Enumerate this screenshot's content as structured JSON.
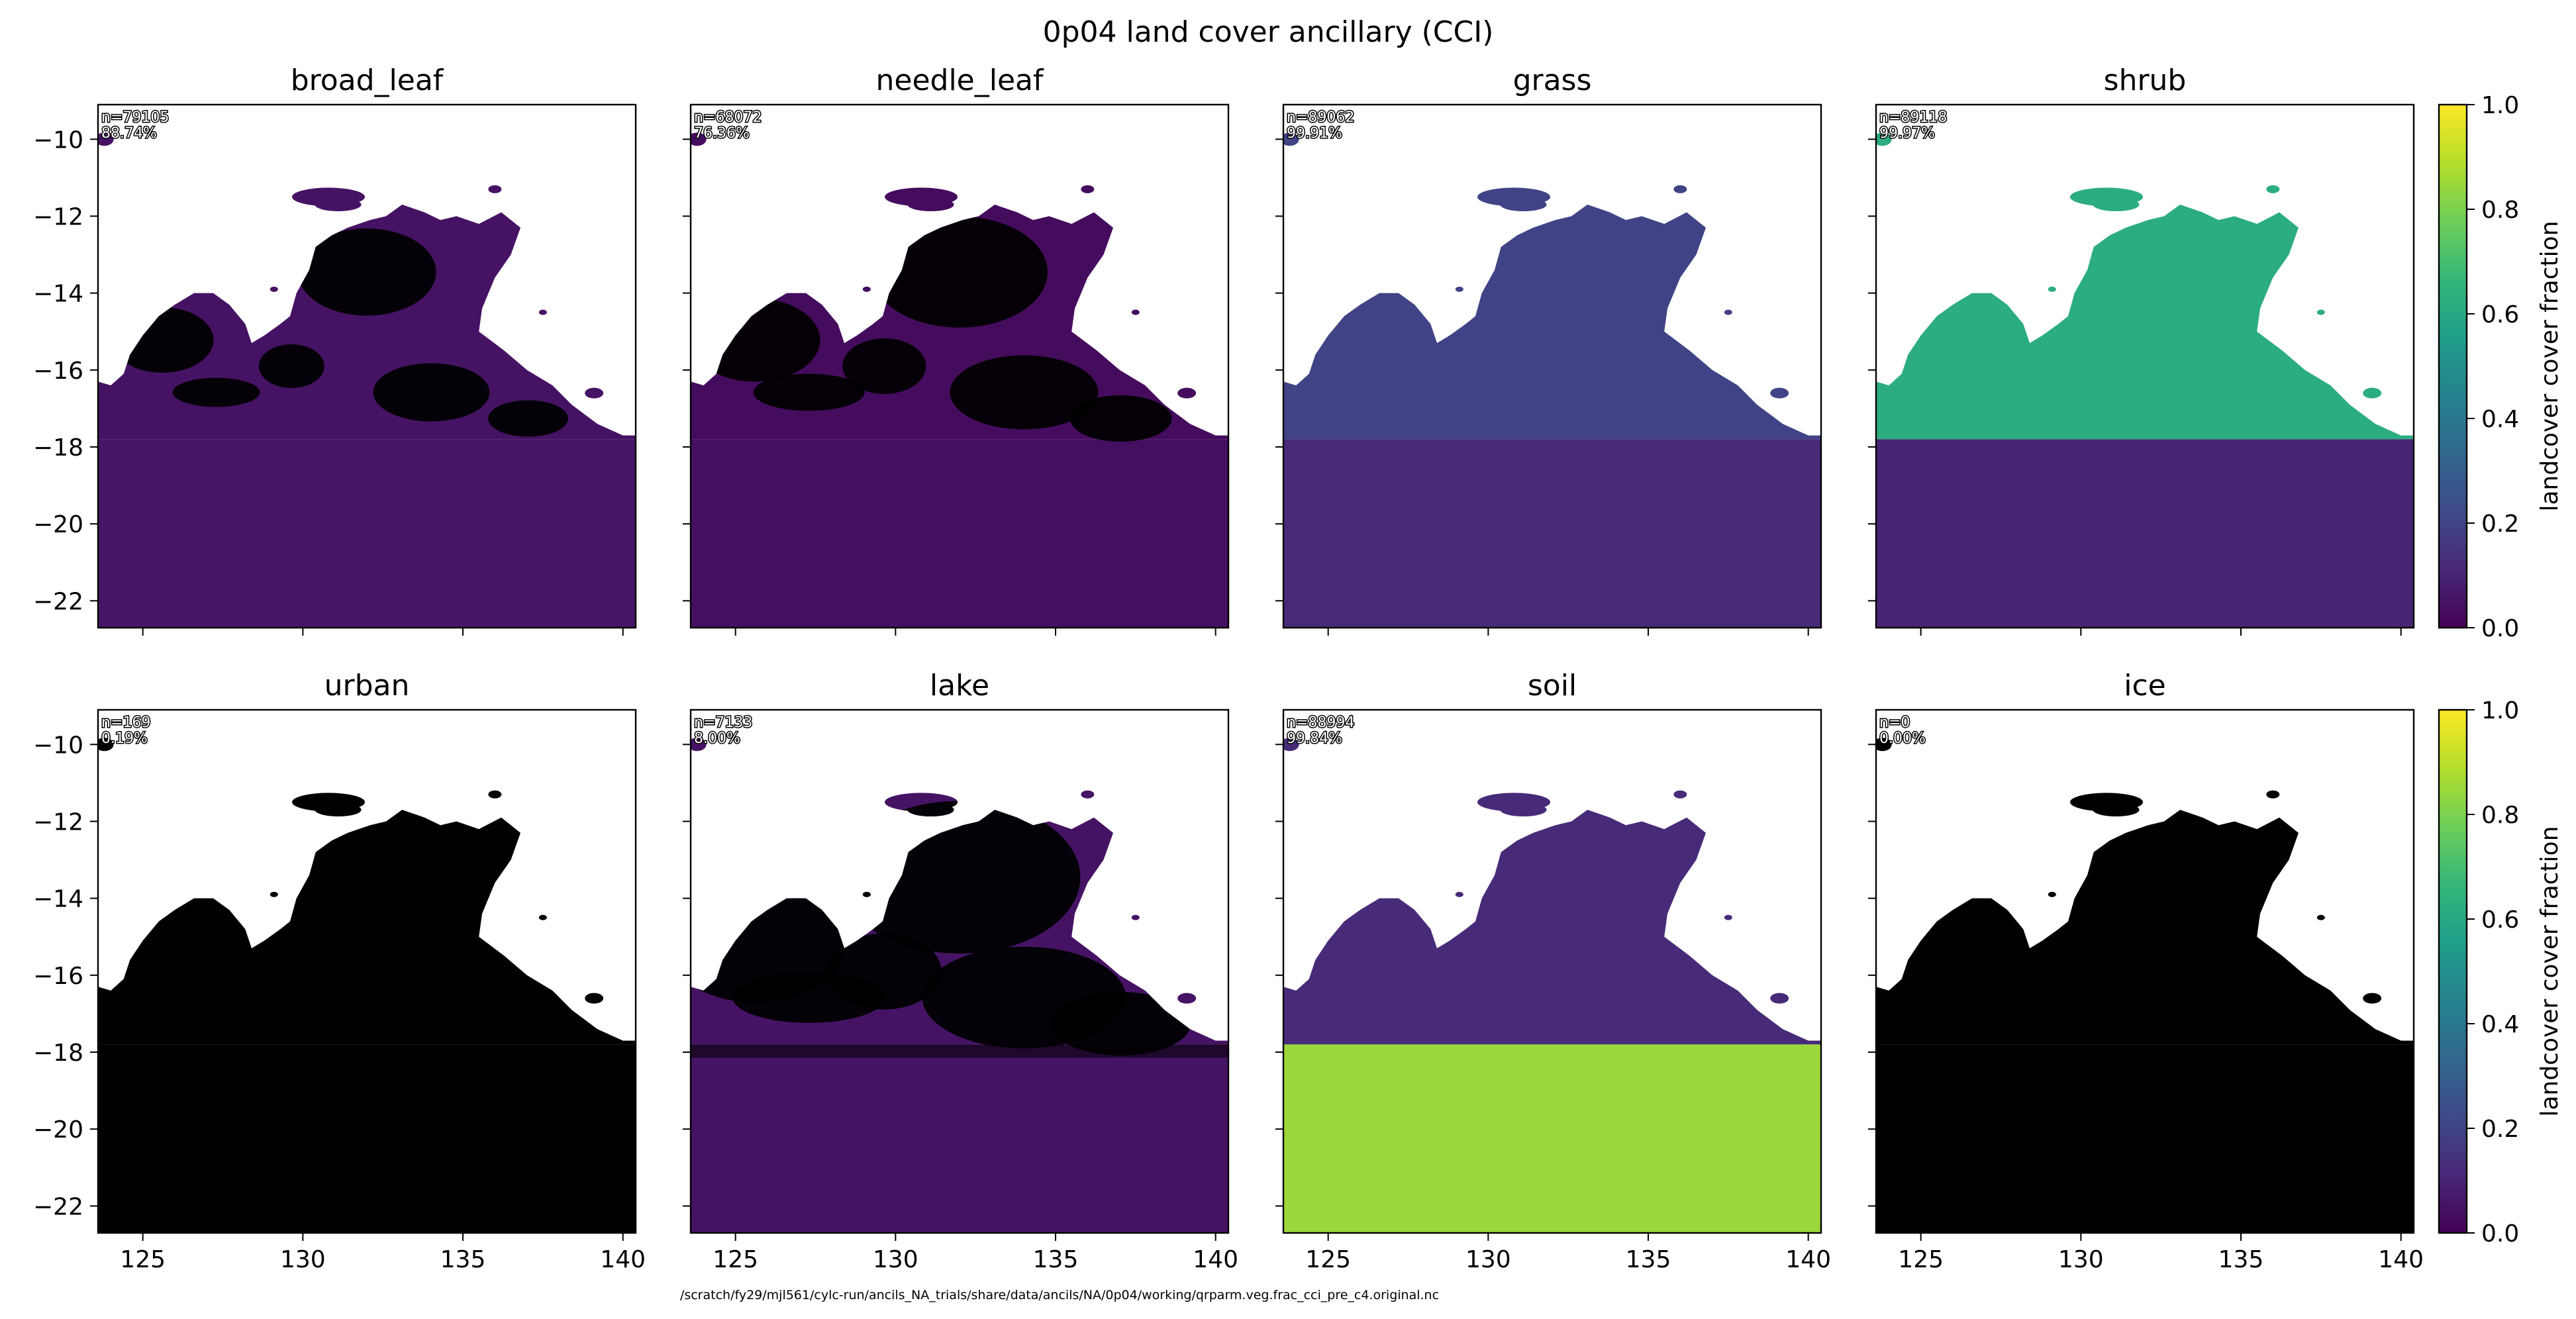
{
  "figure": {
    "title": "0p04 land cover ancillary (CCI)",
    "footer": "/scratch/fy29/mjl561/cylc-run/ancils_NA_trials/share/data/ancils/NA/0p04/working/qrparm.veg.frac_cci_pre_c4.original.nc"
  },
  "colors": {
    "viridis": [
      "#440154",
      "#482878",
      "#3e4a89",
      "#31688e",
      "#26828e",
      "#1f9e89",
      "#35b779",
      "#6ece58",
      "#b5de2b",
      "#fde725"
    ],
    "nodata": "#000000",
    "ocean": "#ffffff"
  },
  "chart_data": {
    "type": "heatmap",
    "layout": "2x4 panel grid",
    "x_axis": {
      "range": [
        123.6,
        140.4
      ],
      "ticks": [
        125,
        130,
        135,
        140
      ],
      "tick_labels": [
        "125",
        "130",
        "135",
        "140"
      ]
    },
    "y_axis": {
      "range": [
        -22.7,
        -9.1
      ],
      "ticks": [
        -10,
        -12,
        -14,
        -16,
        -18,
        -20,
        -22
      ],
      "tick_labels": [
        "−10",
        "−12",
        "−14",
        "−16",
        "−18",
        "−20",
        "−22"
      ]
    },
    "colorbar": {
      "label": "landcover cover fraction",
      "range": [
        0.0,
        1.0
      ],
      "ticks": [
        0.0,
        0.2,
        0.4,
        0.6,
        0.8,
        1.0
      ],
      "tick_labels": [
        "0.0",
        "0.2",
        "0.4",
        "0.6",
        "0.8",
        "1.0"
      ],
      "colormap": "viridis"
    },
    "panels": [
      {
        "name": "broad_leaf",
        "count": "n=79105",
        "percent": "88.74%",
        "north_fraction": 0.05,
        "south_fraction": 0.06,
        "nodata_north": 0.55,
        "nodata_south": 0.0
      },
      {
        "name": "needle_leaf",
        "count": "n=68072",
        "percent": "76.36%",
        "north_fraction": 0.03,
        "south_fraction": 0.04,
        "nodata_north": 0.7,
        "nodata_south": 0.05
      },
      {
        "name": "grass",
        "count": "n=89062",
        "percent": "99.91%",
        "north_fraction": 0.2,
        "south_fraction": 0.12,
        "nodata_north": 0.0,
        "nodata_south": 0.0
      },
      {
        "name": "shrub",
        "count": "n=89118",
        "percent": "99.97%",
        "north_fraction": 0.62,
        "south_fraction": 0.1,
        "nodata_north": 0.0,
        "nodata_south": 0.0
      },
      {
        "name": "urban",
        "count": "n=169",
        "percent": "0.19%",
        "north_fraction": 0.0,
        "south_fraction": 0.0,
        "nodata_north": 1.0,
        "nodata_south": 1.0
      },
      {
        "name": "lake",
        "count": "n=7133",
        "percent": "8.00%",
        "north_fraction": 0.05,
        "south_fraction": 0.05,
        "nodata_north": 0.96,
        "nodata_south": 0.95
      },
      {
        "name": "soil",
        "count": "n=88994",
        "percent": "99.84%",
        "north_fraction": 0.12,
        "south_fraction": 0.85,
        "nodata_north": 0.0,
        "nodata_south": 0.0
      },
      {
        "name": "ice",
        "count": "n=0",
        "percent": "0.00%",
        "north_fraction": 0.0,
        "south_fraction": 0.0,
        "nodata_north": 1.0,
        "nodata_south": 1.0
      }
    ]
  }
}
